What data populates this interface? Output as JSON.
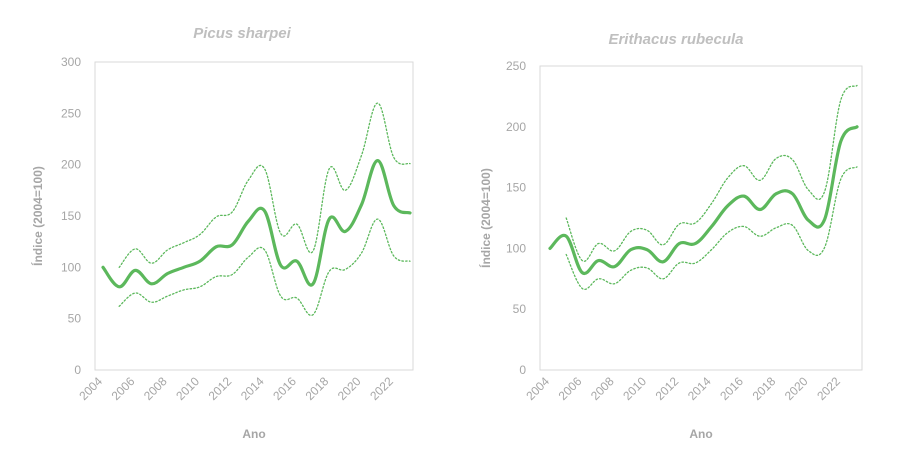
{
  "chart_data": [
    {
      "type": "line",
      "title": "Picus sharpei",
      "xlabel": "Ano",
      "ylabel": "Índice (2004=100)",
      "ylim": [
        0,
        300
      ],
      "yticks": [
        0,
        50,
        100,
        150,
        200,
        250,
        300
      ],
      "xlim": [
        2004,
        2023
      ],
      "xticks": [
        "2004",
        "2006",
        "2008",
        "2010",
        "2012",
        "2014",
        "2016",
        "2018",
        "2020",
        "2022"
      ],
      "grid": false,
      "legend": "none",
      "color": "#5cb85c",
      "x": [
        2004,
        2005,
        2006,
        2007,
        2008,
        2009,
        2010,
        2011,
        2012,
        2013,
        2014,
        2015,
        2016,
        2017,
        2018,
        2019,
        2020,
        2021,
        2022,
        2023
      ],
      "series": [
        {
          "role": "index",
          "values": [
            100,
            81,
            97,
            84,
            94,
            100,
            106,
            120,
            122,
            145,
            155,
            102,
            106,
            84,
            147,
            135,
            161,
            204,
            160,
            153
          ]
        },
        {
          "role": "upper",
          "values": [
            null,
            100,
            118,
            104,
            117,
            124,
            132,
            149,
            154,
            185,
            196,
            133,
            142,
            116,
            196,
            175,
            209,
            260,
            207,
            201
          ]
        },
        {
          "role": "lower",
          "values": [
            null,
            62,
            75,
            66,
            72,
            78,
            81,
            91,
            93,
            110,
            117,
            72,
            70,
            54,
            96,
            98,
            114,
            147,
            111,
            106
          ]
        }
      ]
    },
    {
      "type": "line",
      "title": "Erithacus rubecula",
      "xlabel": "Ano",
      "ylabel": "Índice (2004=100)",
      "ylim": [
        0,
        250
      ],
      "yticks": [
        0,
        50,
        100,
        150,
        200,
        250
      ],
      "xlim": [
        2004,
        2023
      ],
      "xticks": [
        "2004",
        "2006",
        "2008",
        "2010",
        "2012",
        "2014",
        "2016",
        "2018",
        "2020",
        "2022"
      ],
      "grid": false,
      "legend": "none",
      "color": "#5cb85c",
      "x": [
        2004,
        2005,
        2006,
        2007,
        2008,
        2009,
        2010,
        2011,
        2012,
        2013,
        2014,
        2015,
        2016,
        2017,
        2018,
        2019,
        2020,
        2021,
        2022,
        2023
      ],
      "series": [
        {
          "role": "index",
          "values": [
            100,
            110,
            80,
            90,
            85,
            99,
            99,
            89,
            104,
            104,
            118,
            135,
            143,
            132,
            145,
            145,
            123,
            124,
            188,
            200
          ]
        },
        {
          "role": "upper",
          "values": [
            null,
            125,
            90,
            104,
            98,
            114,
            115,
            103,
            120,
            121,
            137,
            158,
            168,
            156,
            174,
            173,
            148,
            147,
            222,
            234
          ]
        },
        {
          "role": "lower",
          "values": [
            null,
            95,
            67,
            75,
            71,
            82,
            84,
            75,
            88,
            88,
            99,
            113,
            118,
            110,
            117,
            119,
            98,
            101,
            157,
            167
          ]
        }
      ]
    }
  ]
}
